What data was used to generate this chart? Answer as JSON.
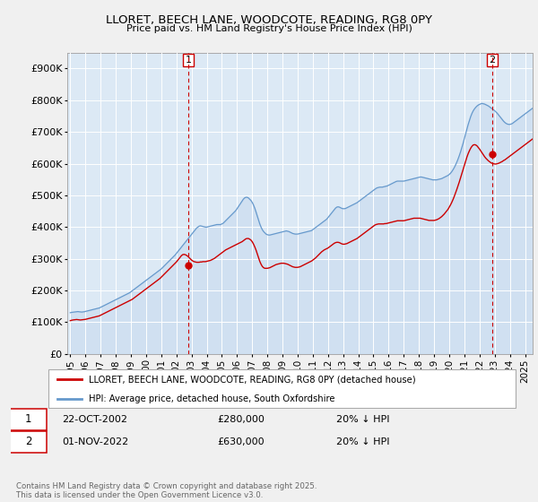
{
  "title": "LLORET, BEECH LANE, WOODCOTE, READING, RG8 0PY",
  "subtitle": "Price paid vs. HM Land Registry's House Price Index (HPI)",
  "legend_label_red": "LLORET, BEECH LANE, WOODCOTE, READING, RG8 0PY (detached house)",
  "legend_label_blue": "HPI: Average price, detached house, South Oxfordshire",
  "footnote": "Contains HM Land Registry data © Crown copyright and database right 2025.\nThis data is licensed under the Open Government Licence v3.0.",
  "annotation1_label": "1",
  "annotation1_date": "22-OCT-2002",
  "annotation1_price": "£280,000",
  "annotation1_note": "20% ↓ HPI",
  "annotation2_label": "2",
  "annotation2_date": "01-NOV-2022",
  "annotation2_price": "£630,000",
  "annotation2_note": "20% ↓ HPI",
  "marker1_x": 2002.79,
  "marker1_y": 280000,
  "marker2_x": 2022.83,
  "marker2_y": 630000,
  "vline1_x": 2002.79,
  "vline2_x": 2022.83,
  "ylim": [
    0,
    950000
  ],
  "xlim_start": 1994.8,
  "xlim_end": 2025.5,
  "yticks": [
    0,
    100000,
    200000,
    300000,
    400000,
    500000,
    600000,
    700000,
    800000,
    900000
  ],
  "ytick_labels": [
    "£0",
    "£100K",
    "£200K",
    "£300K",
    "£400K",
    "£500K",
    "£600K",
    "£700K",
    "£800K",
    "£900K"
  ],
  "xticks": [
    1995,
    1996,
    1997,
    1998,
    1999,
    2000,
    2001,
    2002,
    2003,
    2004,
    2005,
    2006,
    2007,
    2008,
    2009,
    2010,
    2011,
    2012,
    2013,
    2014,
    2015,
    2016,
    2017,
    2018,
    2019,
    2020,
    2021,
    2022,
    2023,
    2024,
    2025
  ],
  "background_color": "#f0f0f0",
  "plot_bg_color": "#dce9f5",
  "grid_color": "#ffffff",
  "red_color": "#cc0000",
  "blue_color": "#6699cc",
  "vline_color": "#cc0000",
  "marker_color": "#cc0000",
  "hpi_monthly": [
    130000,
    131000,
    131500,
    132000,
    132500,
    133000,
    133500,
    133000,
    132500,
    132000,
    132500,
    133000,
    134000,
    135000,
    136000,
    137000,
    138000,
    139000,
    140000,
    141000,
    142000,
    143000,
    144000,
    145000,
    147000,
    149000,
    151000,
    153000,
    155000,
    157000,
    159000,
    161000,
    163000,
    165000,
    167000,
    169000,
    171000,
    173000,
    175000,
    177000,
    179000,
    181000,
    183000,
    185000,
    187000,
    189000,
    191000,
    193000,
    196000,
    199000,
    202000,
    205000,
    208000,
    211000,
    214000,
    217000,
    220000,
    223000,
    226000,
    229000,
    232000,
    235000,
    238000,
    241000,
    244000,
    247000,
    250000,
    253000,
    256000,
    259000,
    262000,
    265000,
    268000,
    272000,
    276000,
    280000,
    284000,
    288000,
    292000,
    296000,
    300000,
    304000,
    308000,
    312000,
    317000,
    322000,
    327000,
    332000,
    337000,
    342000,
    347000,
    352000,
    357000,
    362000,
    367000,
    372000,
    377000,
    382000,
    387000,
    392000,
    397000,
    400000,
    403000,
    404000,
    403000,
    402000,
    401000,
    400000,
    400000,
    401000,
    402000,
    403000,
    404000,
    405000,
    406000,
    407000,
    408000,
    408000,
    408000,
    408000,
    410000,
    412000,
    416000,
    420000,
    424000,
    428000,
    432000,
    436000,
    440000,
    444000,
    448000,
    452000,
    458000,
    464000,
    470000,
    476000,
    482000,
    488000,
    492000,
    494000,
    494000,
    492000,
    488000,
    484000,
    478000,
    470000,
    460000,
    448000,
    435000,
    422000,
    410000,
    400000,
    392000,
    386000,
    382000,
    378000,
    376000,
    375000,
    375000,
    376000,
    377000,
    378000,
    379000,
    380000,
    381000,
    382000,
    383000,
    384000,
    385000,
    386000,
    387000,
    388000,
    387000,
    386000,
    384000,
    382000,
    380000,
    379000,
    378000,
    378000,
    378000,
    379000,
    380000,
    381000,
    382000,
    383000,
    384000,
    385000,
    386000,
    387000,
    388000,
    389000,
    392000,
    395000,
    398000,
    401000,
    404000,
    407000,
    410000,
    413000,
    416000,
    419000,
    422000,
    425000,
    430000,
    435000,
    440000,
    445000,
    450000,
    455000,
    460000,
    463000,
    464000,
    463000,
    461000,
    459000,
    458000,
    458000,
    459000,
    461000,
    463000,
    465000,
    467000,
    469000,
    471000,
    473000,
    475000,
    477000,
    480000,
    483000,
    486000,
    489000,
    492000,
    495000,
    498000,
    501000,
    504000,
    507000,
    510000,
    513000,
    516000,
    519000,
    522000,
    524000,
    525000,
    526000,
    526000,
    526000,
    527000,
    528000,
    529000,
    530000,
    532000,
    534000,
    536000,
    538000,
    540000,
    542000,
    544000,
    545000,
    545000,
    545000,
    545000,
    545000,
    545000,
    546000,
    547000,
    548000,
    549000,
    550000,
    551000,
    552000,
    553000,
    554000,
    555000,
    556000,
    557000,
    558000,
    558000,
    557000,
    556000,
    555000,
    554000,
    553000,
    552000,
    551000,
    550000,
    549000,
    549000,
    549000,
    549000,
    550000,
    551000,
    552000,
    553000,
    555000,
    557000,
    559000,
    561000,
    563000,
    566000,
    570000,
    575000,
    581000,
    588000,
    596000,
    605000,
    615000,
    626000,
    638000,
    651000,
    665000,
    680000,
    695000,
    710000,
    724000,
    737000,
    749000,
    759000,
    767000,
    773000,
    778000,
    782000,
    785000,
    787000,
    789000,
    790000,
    789000,
    788000,
    786000,
    784000,
    782000,
    779000,
    776000,
    773000,
    770000,
    767000,
    763000,
    759000,
    754000,
    749000,
    744000,
    739000,
    734000,
    730000,
    727000,
    725000,
    724000,
    724000,
    725000,
    727000,
    730000,
    733000,
    736000,
    739000,
    742000,
    745000,
    748000,
    751000,
    754000,
    757000,
    760000,
    763000,
    766000,
    769000,
    772000,
    775000,
    778000,
    781000,
    784000,
    787000,
    790000
  ],
  "price_monthly": [
    105000,
    106000,
    107000,
    107500,
    108000,
    108500,
    108000,
    107500,
    107000,
    107500,
    108000,
    108500,
    109000,
    110000,
    111000,
    112000,
    113000,
    114000,
    115000,
    116000,
    117000,
    118000,
    119000,
    120000,
    122000,
    124000,
    126000,
    128000,
    130000,
    132000,
    134000,
    136000,
    138000,
    140000,
    142000,
    144000,
    146000,
    148000,
    150000,
    152000,
    154000,
    156000,
    158000,
    160000,
    162000,
    164000,
    166000,
    168000,
    170000,
    172000,
    175000,
    178000,
    181000,
    184000,
    187000,
    190000,
    193000,
    196000,
    199000,
    202000,
    205000,
    208000,
    211000,
    214000,
    217000,
    220000,
    223000,
    226000,
    229000,
    232000,
    235000,
    238000,
    242000,
    246000,
    250000,
    254000,
    258000,
    262000,
    266000,
    270000,
    274000,
    278000,
    282000,
    286000,
    290000,
    295000,
    300000,
    305000,
    310000,
    313000,
    314000,
    313000,
    311000,
    308000,
    304000,
    300000,
    296000,
    293000,
    291000,
    290000,
    289000,
    289000,
    289000,
    290000,
    290000,
    291000,
    291000,
    291000,
    292000,
    293000,
    294000,
    295000,
    297000,
    299000,
    301000,
    304000,
    307000,
    310000,
    313000,
    316000,
    319000,
    322000,
    325000,
    328000,
    330000,
    332000,
    334000,
    336000,
    338000,
    340000,
    342000,
    344000,
    346000,
    348000,
    350000,
    352000,
    354000,
    357000,
    360000,
    363000,
    364000,
    364000,
    362000,
    359000,
    354000,
    347000,
    338000,
    328000,
    316000,
    304000,
    292000,
    283000,
    276000,
    272000,
    270000,
    270000,
    270000,
    271000,
    272000,
    274000,
    276000,
    278000,
    280000,
    282000,
    283000,
    284000,
    285000,
    286000,
    286000,
    286000,
    285000,
    284000,
    283000,
    281000,
    279000,
    277000,
    275000,
    274000,
    273000,
    273000,
    273000,
    274000,
    275000,
    277000,
    279000,
    281000,
    283000,
    285000,
    287000,
    289000,
    291000,
    293000,
    296000,
    299000,
    302000,
    306000,
    310000,
    314000,
    318000,
    322000,
    325000,
    328000,
    330000,
    332000,
    334000,
    337000,
    340000,
    343000,
    346000,
    349000,
    351000,
    352000,
    352000,
    351000,
    349000,
    347000,
    346000,
    346000,
    347000,
    348000,
    350000,
    352000,
    354000,
    356000,
    358000,
    360000,
    362000,
    364000,
    367000,
    370000,
    373000,
    376000,
    379000,
    382000,
    385000,
    388000,
    391000,
    394000,
    397000,
    400000,
    403000,
    406000,
    408000,
    409000,
    410000,
    410000,
    410000,
    410000,
    410000,
    411000,
    411000,
    412000,
    413000,
    414000,
    415000,
    416000,
    417000,
    418000,
    419000,
    420000,
    420000,
    420000,
    420000,
    420000,
    420000,
    421000,
    422000,
    423000,
    424000,
    425000,
    426000,
    427000,
    428000,
    428000,
    428000,
    428000,
    428000,
    428000,
    427000,
    426000,
    425000,
    424000,
    423000,
    422000,
    421000,
    421000,
    421000,
    421000,
    421000,
    422000,
    423000,
    425000,
    427000,
    430000,
    433000,
    437000,
    441000,
    446000,
    451000,
    456000,
    463000,
    470000,
    478000,
    487000,
    497000,
    508000,
    519000,
    531000,
    543000,
    556000,
    569000,
    583000,
    596000,
    609000,
    621000,
    632000,
    641000,
    649000,
    655000,
    659000,
    660000,
    659000,
    656000,
    651000,
    646000,
    640000,
    634000,
    628000,
    622000,
    617000,
    613000,
    609000,
    606000,
    603000,
    601000,
    600000,
    599000,
    599000,
    600000,
    601000,
    603000,
    605000,
    607000,
    610000,
    612000,
    615000,
    618000,
    621000,
    624000,
    627000,
    630000,
    633000,
    636000,
    639000,
    642000,
    645000,
    648000,
    651000,
    654000,
    657000,
    660000,
    663000,
    666000,
    669000,
    672000,
    675000,
    678000,
    681000,
    684000,
    687000,
    690000,
    693000
  ],
  "hpi_start_year": 1995,
  "price_start_year": 1995
}
